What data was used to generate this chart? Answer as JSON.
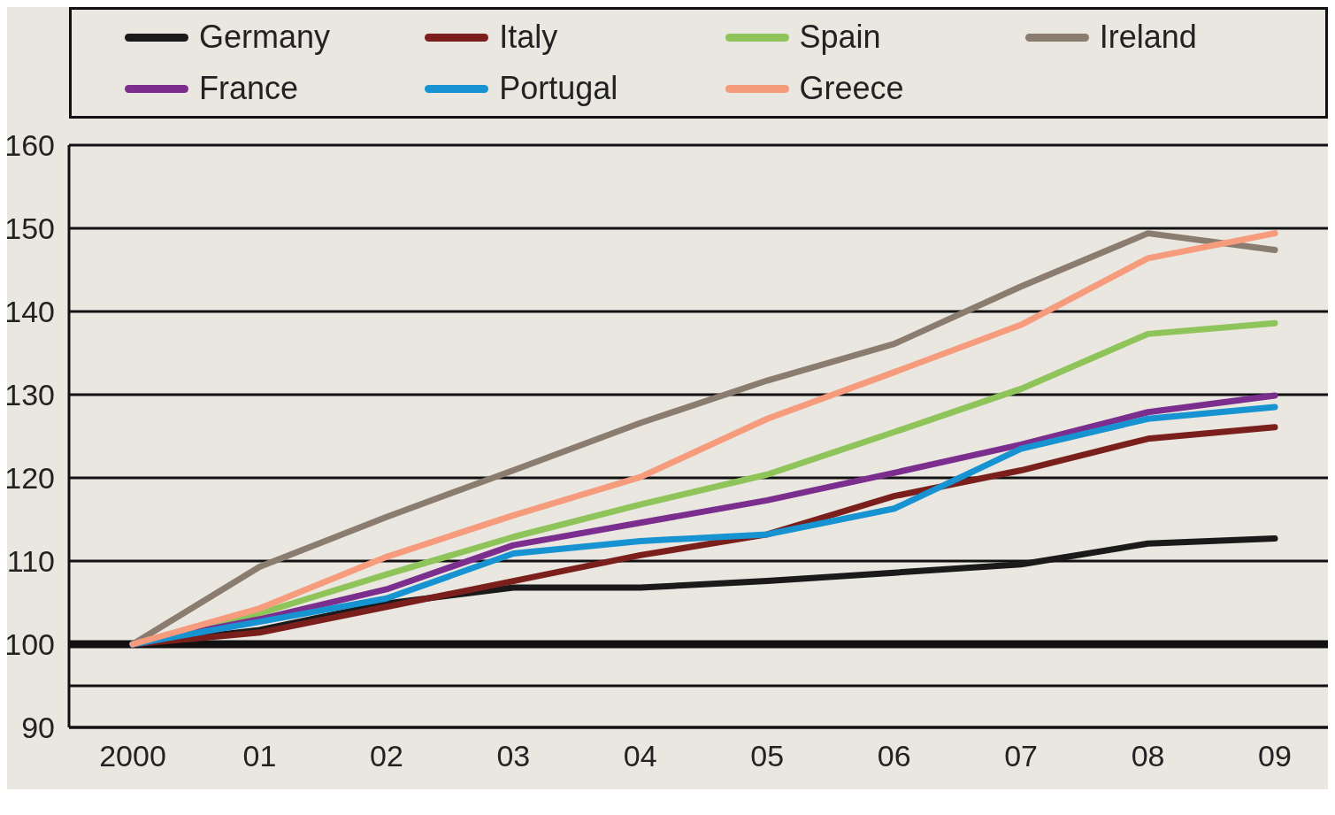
{
  "chart_data": {
    "type": "line",
    "categories": [
      "2000",
      "01",
      "02",
      "03",
      "04",
      "05",
      "06",
      "07",
      "08",
      "09"
    ],
    "series": [
      {
        "name": "Germany",
        "color": "#1a1a1a",
        "values": [
          100,
          101.7,
          104.9,
          106.8,
          106.8,
          107.6,
          108.6,
          109.6,
          112.1,
          112.7
        ]
      },
      {
        "name": "Italy",
        "color": "#7b1f1c",
        "values": [
          100,
          101.4,
          104.5,
          107.6,
          110.7,
          113.2,
          117.8,
          120.9,
          124.7,
          126.1
        ]
      },
      {
        "name": "Spain",
        "color": "#8fc45a",
        "values": [
          100,
          103.7,
          108.4,
          112.9,
          116.8,
          120.4,
          125.5,
          130.7,
          137.3,
          138.6
        ]
      },
      {
        "name": "Ireland",
        "color": "#8a7d70",
        "values": [
          100,
          109.3,
          115.3,
          120.9,
          126.6,
          131.7,
          136.1,
          143,
          149.4,
          147.4
        ]
      },
      {
        "name": "France",
        "color": "#7b2e8e",
        "values": [
          100,
          103,
          106.6,
          111.9,
          114.6,
          117.3,
          120.6,
          124,
          127.9,
          129.9
        ]
      },
      {
        "name": "Portugal",
        "color": "#1793d1",
        "values": [
          100,
          102.7,
          105.5,
          110.9,
          112.4,
          113.2,
          116.3,
          123.5,
          127.1,
          128.5
        ]
      },
      {
        "name": "Greece",
        "color": "#f79b7d",
        "values": [
          100,
          104.3,
          110.5,
          115.5,
          120.1,
          127.1,
          132.7,
          138.4,
          146.4,
          149.4
        ]
      }
    ],
    "ylim": [
      90,
      160
    ],
    "yticks": [
      90,
      {
        "value": 95,
        "label": null
      },
      100,
      110,
      120,
      130,
      140,
      150,
      160
    ],
    "ref_lines": [
      {
        "axis": "y",
        "value": 100,
        "color": "#111111"
      }
    ],
    "grid": "y",
    "legend": "top",
    "marker": "none",
    "line_style": "solid"
  }
}
